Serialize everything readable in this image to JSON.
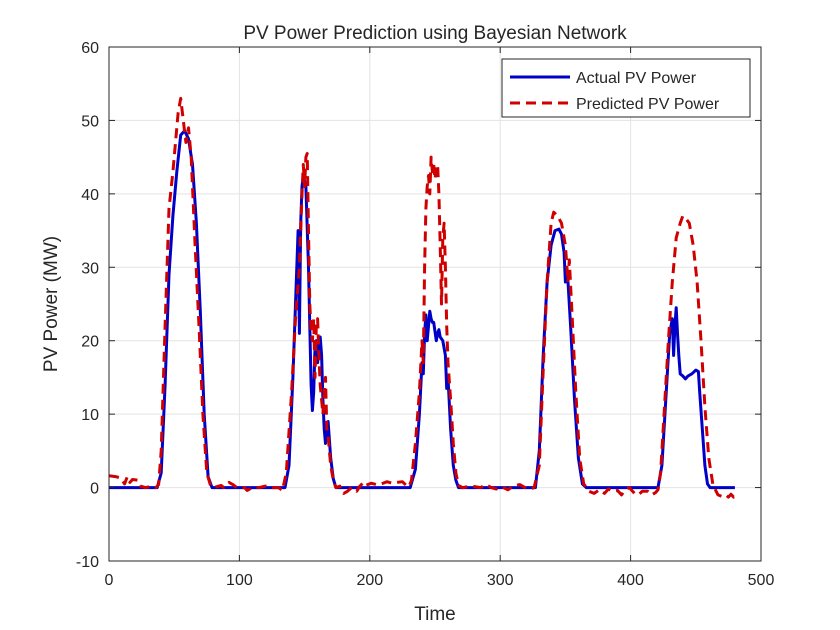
{
  "chart_data": {
    "type": "line",
    "title": "PV Power Prediction using Bayesian Network",
    "xlabel": "Time",
    "ylabel": "PV Power (MW)",
    "xlim": [
      0,
      500
    ],
    "ylim": [
      -10,
      60
    ],
    "xticks": [
      0,
      100,
      200,
      300,
      400,
      500
    ],
    "yticks": [
      -10,
      0,
      10,
      20,
      30,
      40,
      50,
      60
    ],
    "grid": true,
    "legend_position": "top-right",
    "series": [
      {
        "name": "Actual PV Power",
        "color": "#0000c8",
        "style": "solid",
        "points": [
          [
            0,
            0
          ],
          [
            30,
            0
          ],
          [
            37,
            0
          ],
          [
            40,
            2
          ],
          [
            43,
            14
          ],
          [
            46,
            29
          ],
          [
            49,
            37
          ],
          [
            52,
            43
          ],
          [
            55,
            48
          ],
          [
            58,
            48.6
          ],
          [
            61,
            47.5
          ],
          [
            64,
            44
          ],
          [
            67,
            36
          ],
          [
            70,
            24
          ],
          [
            73,
            10
          ],
          [
            76,
            1.5
          ],
          [
            79,
            0
          ],
          [
            135,
            0
          ],
          [
            138,
            3
          ],
          [
            141,
            15
          ],
          [
            144,
            30
          ],
          [
            145,
            35
          ],
          [
            146,
            21
          ],
          [
            147,
            36
          ],
          [
            148,
            41
          ],
          [
            149,
            42.5
          ],
          [
            151,
            41
          ],
          [
            153,
            30
          ],
          [
            155,
            14
          ],
          [
            156,
            10.5
          ],
          [
            157,
            13
          ],
          [
            158,
            19
          ],
          [
            159,
            20
          ],
          [
            160,
            17
          ],
          [
            162,
            20.5
          ],
          [
            163,
            18
          ],
          [
            164,
            12
          ],
          [
            165,
            8
          ],
          [
            166,
            6
          ],
          [
            168,
            9
          ],
          [
            170,
            4
          ],
          [
            172,
            1.2
          ],
          [
            174,
            0
          ],
          [
            231,
            0
          ],
          [
            235,
            2.5
          ],
          [
            238,
            10
          ],
          [
            240,
            17
          ],
          [
            241,
            15.5
          ],
          [
            242,
            21
          ],
          [
            243,
            23.5
          ],
          [
            244,
            20
          ],
          [
            245,
            22
          ],
          [
            246,
            24
          ],
          [
            247,
            23
          ],
          [
            248,
            22.5
          ],
          [
            249,
            22.5
          ],
          [
            251,
            20
          ],
          [
            252,
            21
          ],
          [
            253,
            21.5
          ],
          [
            254,
            20.5
          ],
          [
            256,
            20
          ],
          [
            258,
            18
          ],
          [
            259,
            13.5
          ],
          [
            260,
            15
          ],
          [
            262,
            8
          ],
          [
            264,
            3
          ],
          [
            266,
            1
          ],
          [
            268,
            0
          ],
          [
            322,
            0
          ],
          [
            327,
            0
          ],
          [
            330,
            5
          ],
          [
            333,
            18
          ],
          [
            336,
            28
          ],
          [
            339,
            33
          ],
          [
            342,
            35
          ],
          [
            345,
            35.2
          ],
          [
            347,
            34.5
          ],
          [
            349,
            32
          ],
          [
            350,
            28
          ],
          [
            351,
            30
          ],
          [
            352,
            28
          ],
          [
            354,
            22
          ],
          [
            357,
            12
          ],
          [
            360,
            4
          ],
          [
            363,
            0.5
          ],
          [
            366,
            0
          ],
          [
            421,
            0
          ],
          [
            424,
            3
          ],
          [
            427,
            12
          ],
          [
            430,
            21
          ],
          [
            432,
            23
          ],
          [
            433,
            18
          ],
          [
            434,
            22
          ],
          [
            435,
            24.5
          ],
          [
            436,
            21
          ],
          [
            437,
            18
          ],
          [
            438,
            15.5
          ],
          [
            440,
            15.2
          ],
          [
            442,
            14.8
          ],
          [
            444,
            15.2
          ],
          [
            447,
            15.5
          ],
          [
            450,
            16
          ],
          [
            452,
            15.8
          ],
          [
            453,
            13
          ],
          [
            455,
            8
          ],
          [
            457,
            3
          ],
          [
            459,
            0.5
          ],
          [
            461,
            0
          ],
          [
            480,
            0
          ]
        ]
      },
      {
        "name": "Predicted PV Power",
        "color": "#d00000",
        "style": "dashed",
        "points": [
          [
            0,
            1.6
          ],
          [
            5,
            1.5
          ],
          [
            9,
            1.3
          ],
          [
            12,
            0.5
          ],
          [
            14,
            1.5
          ],
          [
            16,
            0.7
          ],
          [
            18,
            1.1
          ],
          [
            22,
            1
          ],
          [
            24,
            0.2
          ],
          [
            28,
            0
          ],
          [
            31,
            0.1
          ],
          [
            33,
            0.2
          ],
          [
            36,
            0
          ],
          [
            38,
            0.4
          ],
          [
            40,
            5
          ],
          [
            43,
            22
          ],
          [
            46,
            38
          ],
          [
            49,
            43
          ],
          [
            51,
            47
          ],
          [
            53,
            51
          ],
          [
            55,
            53
          ],
          [
            57,
            50
          ],
          [
            59,
            47
          ],
          [
            61,
            49
          ],
          [
            63,
            45
          ],
          [
            66,
            33
          ],
          [
            69,
            22
          ],
          [
            72,
            10
          ],
          [
            75,
            2
          ],
          [
            78,
            0.2
          ],
          [
            80,
            0
          ],
          [
            86,
            0.3
          ],
          [
            88,
            0
          ],
          [
            92,
            0.7
          ],
          [
            95,
            0.4
          ],
          [
            98,
            0
          ],
          [
            104,
            0
          ],
          [
            106,
            -0.4
          ],
          [
            110,
            0
          ],
          [
            115,
            0
          ],
          [
            120,
            0.2
          ],
          [
            125,
            0
          ],
          [
            130,
            0
          ],
          [
            133,
            -0.4
          ],
          [
            136,
            2
          ],
          [
            140,
            13
          ],
          [
            143,
            23
          ],
          [
            146,
            30
          ],
          [
            148,
            40
          ],
          [
            149,
            44
          ],
          [
            150,
            41
          ],
          [
            151,
            45
          ],
          [
            152,
            45.5
          ],
          [
            153,
            35
          ],
          [
            154,
            25
          ],
          [
            155,
            21
          ],
          [
            156,
            20
          ],
          [
            157,
            23
          ],
          [
            158,
            15
          ],
          [
            159,
            22
          ],
          [
            160,
            23
          ],
          [
            161,
            18
          ],
          [
            162,
            14
          ],
          [
            164,
            10
          ],
          [
            165,
            13
          ],
          [
            166,
            15
          ],
          [
            167,
            8
          ],
          [
            168,
            7
          ],
          [
            170,
            3
          ],
          [
            172,
            1
          ],
          [
            174,
            0
          ],
          [
            177,
            0.2
          ],
          [
            180,
            -0.8
          ],
          [
            183,
            -0.5
          ],
          [
            186,
            0
          ],
          [
            190,
            -0.5
          ],
          [
            192,
            0.1
          ],
          [
            195,
            0.7
          ],
          [
            197,
            0.3
          ],
          [
            201,
            0.6
          ],
          [
            205,
            0.4
          ],
          [
            209,
            0.5
          ],
          [
            213,
            0.8
          ],
          [
            217,
            0.6
          ],
          [
            221,
            0.7
          ],
          [
            225,
            0.8
          ],
          [
            228,
            0.3
          ],
          [
            230,
            0.1
          ],
          [
            232,
            1
          ],
          [
            235,
            6
          ],
          [
            238,
            13
          ],
          [
            240,
            20
          ],
          [
            241,
            17
          ],
          [
            242,
            30
          ],
          [
            243,
            38
          ],
          [
            244,
            41
          ],
          [
            245,
            42.5
          ],
          [
            246,
            40
          ],
          [
            247,
            45
          ],
          [
            248,
            43
          ],
          [
            249,
            44
          ],
          [
            250,
            42
          ],
          [
            251,
            43.5
          ],
          [
            252,
            44
          ],
          [
            253,
            40
          ],
          [
            254,
            33
          ],
          [
            255,
            25
          ],
          [
            256,
            34
          ],
          [
            257,
            36
          ],
          [
            258,
            30
          ],
          [
            259,
            22
          ],
          [
            260,
            17
          ],
          [
            262,
            12
          ],
          [
            264,
            6
          ],
          [
            266,
            2
          ],
          [
            268,
            0.3
          ],
          [
            271,
            0
          ],
          [
            278,
            0.2
          ],
          [
            285,
            0
          ],
          [
            289,
            0.4
          ],
          [
            293,
            0
          ],
          [
            297,
            -0.2
          ],
          [
            301,
            0.1
          ],
          [
            306,
            -0.3
          ],
          [
            310,
            0.2
          ],
          [
            315,
            0.4
          ],
          [
            319,
            0
          ],
          [
            323,
            -0.2
          ],
          [
            326,
            0
          ],
          [
            330,
            3
          ],
          [
            333,
            16
          ],
          [
            336,
            28
          ],
          [
            339,
            36
          ],
          [
            341,
            37.5
          ],
          [
            344,
            37
          ],
          [
            347,
            36
          ],
          [
            350,
            33
          ],
          [
            352,
            28
          ],
          [
            353,
            31
          ],
          [
            355,
            24
          ],
          [
            358,
            13
          ],
          [
            361,
            4
          ],
          [
            364,
            0.5
          ],
          [
            366,
            0
          ],
          [
            368,
            -0.5
          ],
          [
            372,
            -0.8
          ],
          [
            376,
            -0.3
          ],
          [
            380,
            -0.8
          ],
          [
            383,
            -0.2
          ],
          [
            386,
            -0.5
          ],
          [
            390,
            -0.4
          ],
          [
            393,
            -1
          ],
          [
            396,
            -0.3
          ],
          [
            399,
            0
          ],
          [
            403,
            -0.8
          ],
          [
            406,
            -1
          ],
          [
            409,
            -0.5
          ],
          [
            413,
            -0.5
          ],
          [
            416,
            -1
          ],
          [
            419,
            -0.7
          ],
          [
            421,
            -0.3
          ],
          [
            423,
            2
          ],
          [
            426,
            11
          ],
          [
            429,
            20
          ],
          [
            432,
            28
          ],
          [
            435,
            34
          ],
          [
            438,
            36
          ],
          [
            440,
            37
          ],
          [
            443,
            36.5
          ],
          [
            445,
            36
          ],
          [
            448,
            33
          ],
          [
            451,
            28
          ],
          [
            454,
            20
          ],
          [
            457,
            11
          ],
          [
            460,
            4
          ],
          [
            463,
            0.5
          ],
          [
            465,
            -0.3
          ],
          [
            467,
            -1
          ],
          [
            470,
            -1.2
          ],
          [
            473,
            -1
          ],
          [
            475,
            -1.3
          ],
          [
            477,
            -0.9
          ],
          [
            479,
            -1.3
          ],
          [
            481,
            -0.8
          ]
        ]
      }
    ]
  }
}
